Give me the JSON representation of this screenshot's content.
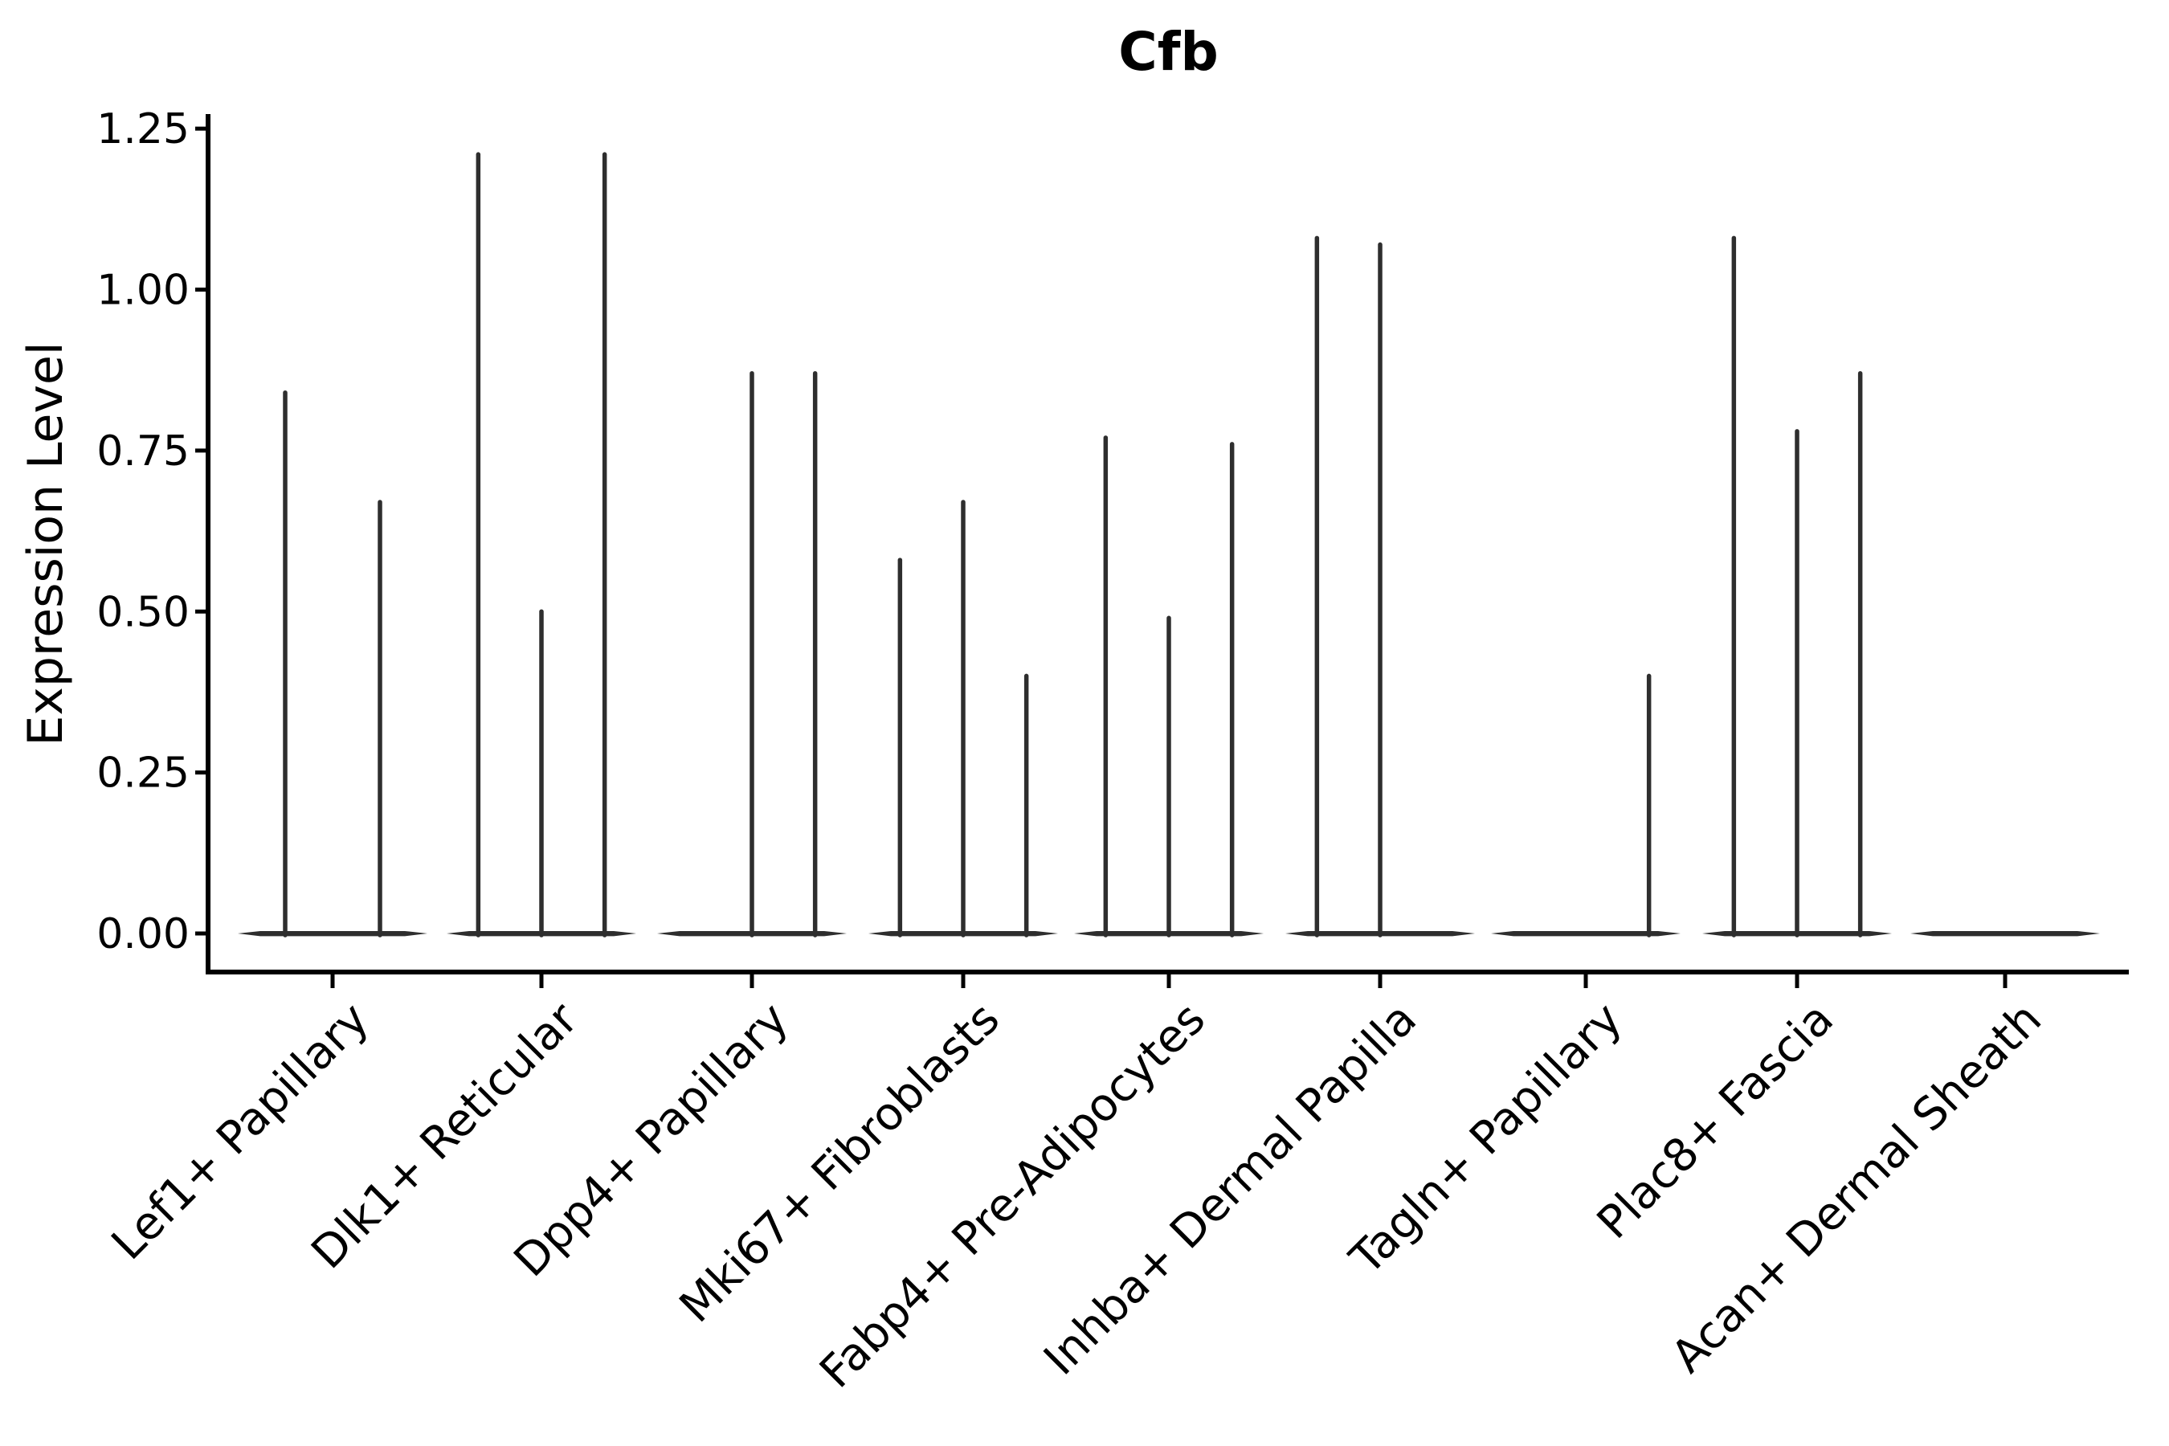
{
  "figure": {
    "title": "Cfb",
    "background_color": "#ffffff",
    "violin_line_color": "#2e2e2e",
    "axis_color": "#000000"
  },
  "chart_data": {
    "type": "violin",
    "title": "Cfb",
    "xlabel": "",
    "ylabel": "Expression Level",
    "ylim": [
      0,
      1.27
    ],
    "grid": false,
    "legend": "none",
    "orientation": "vertical",
    "yticks": [
      0,
      0.25,
      0.5,
      0.75,
      1.0,
      1.25
    ],
    "ytick_labels": [
      "0.00",
      "0.25",
      "0.50",
      "0.75",
      "1.00",
      "1.25"
    ],
    "categories": [
      "Lef1+ Papillary",
      "Dlk1+ Reticular",
      "Dpp4+ Papillary",
      "Mki67+ Fibroblasts",
      "Fabp4+ Pre-Adipocytes",
      "Inhba+ Dermal Papilla",
      "Tagln+ Papillary",
      "Plac8+ Fascia",
      "Acan+ Dermal Sheath"
    ],
    "groups": [
      {
        "category": "Lef1+ Papillary",
        "violin_peaks": [
          0.84,
          0.67
        ]
      },
      {
        "category": "Dlk1+ Reticular",
        "violin_peaks": [
          1.21,
          0.5,
          1.21
        ]
      },
      {
        "category": "Dpp4+ Papillary",
        "violin_peaks": [
          0,
          0.87,
          0.87
        ]
      },
      {
        "category": "Mki67+ Fibroblasts",
        "violin_peaks": [
          0.58,
          0.67,
          0.4
        ]
      },
      {
        "category": "Fabp4+ Pre-Adipocytes",
        "violin_peaks": [
          0.77,
          0.49,
          0.76
        ]
      },
      {
        "category": "Inhba+ Dermal Papilla",
        "violin_peaks": [
          1.08,
          1.07,
          0
        ]
      },
      {
        "category": "Tagln+ Papillary",
        "violin_peaks": [
          0,
          0,
          0.4
        ]
      },
      {
        "category": "Plac8+ Fascia",
        "violin_peaks": [
          1.08,
          0.78,
          0.87
        ]
      },
      {
        "category": "Acan+ Dermal Sheath",
        "violin_peaks": [
          0,
          0,
          0
        ]
      }
    ],
    "note": "Each category contains 2-3 collapsed (zero-width) violins; violin_peaks are the max expression of each sub-violin, 0 = flat baseline only."
  }
}
